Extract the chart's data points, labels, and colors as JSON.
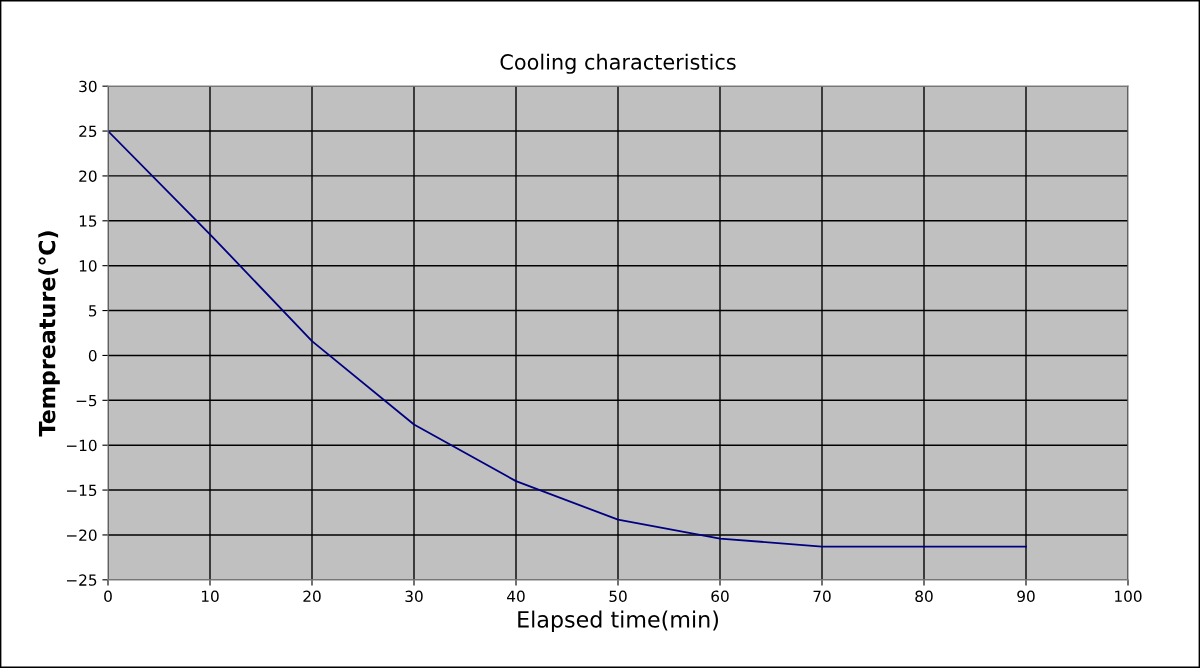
{
  "chart_data": {
    "type": "line",
    "title": "Cooling characteristics",
    "xlabel": "Elapsed time(min)",
    "ylabel": "Tempreature(℃)",
    "x": [
      0,
      10,
      20,
      30,
      40,
      50,
      60,
      70,
      80,
      90
    ],
    "series": [
      {
        "color": "#000080",
        "values": [
          25,
          13.5,
          1.6,
          -7.7,
          -14,
          -18.3,
          -20.4,
          -21.3,
          -21.3,
          -21.3
        ]
      }
    ],
    "xlim": [
      0,
      100
    ],
    "xticks": [
      0,
      10,
      20,
      30,
      40,
      50,
      60,
      70,
      80,
      90,
      100
    ],
    "ylim": [
      -25,
      30
    ],
    "yticks": [
      -25,
      -20,
      -15,
      -10,
      -5,
      0,
      5,
      10,
      15,
      20,
      25,
      30
    ],
    "grid": true,
    "marker": "none",
    "line_style": "solid"
  }
}
